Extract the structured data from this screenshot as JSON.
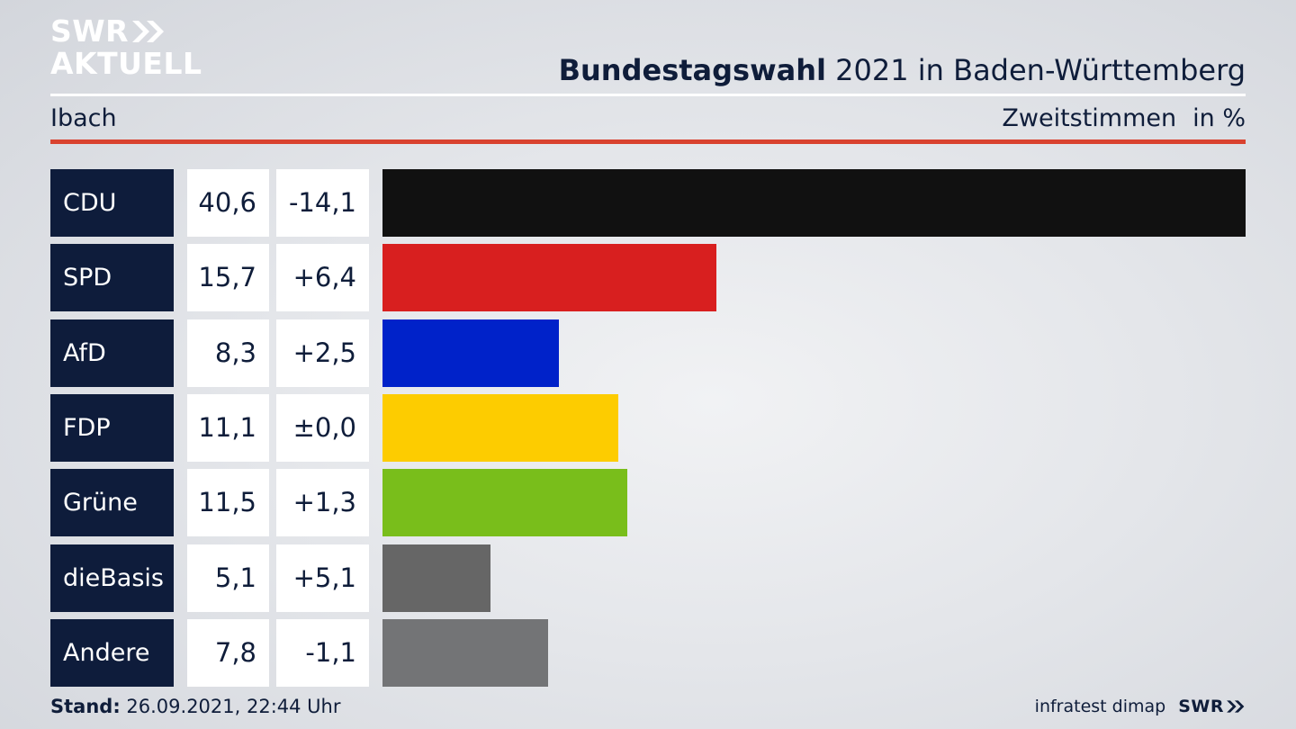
{
  "logo": {
    "line1": "SWR",
    "line2": "AKTUELL"
  },
  "header": {
    "title_bold": "Bundestagswahl",
    "title_rest": " 2021 in Baden-Württemberg"
  },
  "subheader": {
    "region": "Ibach",
    "measure": "Zweitstimmen",
    "unit": "in %"
  },
  "footer": {
    "stand_label": "Stand:",
    "stand_value": " 26.09.2021, 22:44 Uhr",
    "source": "infratest dimap",
    "brand": "SWR"
  },
  "chart_data": {
    "type": "bar",
    "orientation": "horizontal",
    "categories": [
      "CDU",
      "SPD",
      "AfD",
      "FDP",
      "Grüne",
      "dieBasis",
      "Andere"
    ],
    "series": [
      {
        "values": [
          40.6,
          15.7,
          8.3,
          11.1,
          11.5,
          5.1,
          7.8
        ]
      }
    ],
    "value_labels": [
      "40,6",
      "15,7",
      "8,3",
      "11,1",
      "11,5",
      "5,1",
      "7,8"
    ],
    "diff_labels": [
      "-14,1",
      "+6,4",
      "+2,5",
      "±0,0",
      "+1,3",
      "+5,1",
      "-1,1"
    ],
    "colors": [
      "#111111",
      "#d81f1f",
      "#0022c9",
      "#fdcc00",
      "#79be1b",
      "#666666",
      "#737476"
    ],
    "xlim": [
      0,
      40.6
    ],
    "grid": false,
    "legend": "none"
  }
}
